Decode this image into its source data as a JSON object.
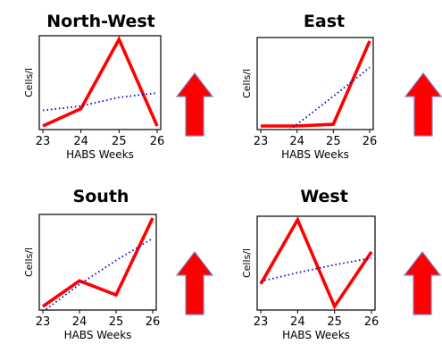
{
  "colors": {
    "line": "#ff0000",
    "trend": "#0000cc",
    "arrow": "#ff0000",
    "arrow_outline": "#7f7fbf"
  },
  "chart_data": [
    {
      "type": "line",
      "title": "North-West",
      "xlabel": "HABS Weeks",
      "ylabel": "Cells/l",
      "x": [
        23,
        24,
        25,
        26
      ],
      "xticks": [
        "23",
        "24",
        "25",
        "26"
      ],
      "ylim": [
        0,
        100
      ],
      "grid": false,
      "legend": "none",
      "series": [
        {
          "values": [
            0,
            20,
            100,
            0
          ],
          "style": "solid"
        },
        {
          "values": [
            18,
            23,
            33,
            38
          ],
          "style": "dotted"
        }
      ],
      "indicator": "up-arrow-icon"
    },
    {
      "type": "line",
      "title": "East",
      "xlabel": "HABS Weeks",
      "ylabel": "Cells/l",
      "x": [
        23,
        24,
        25,
        26
      ],
      "xticks": [
        "23",
        "24",
        "25",
        "26"
      ],
      "ylim": [
        0,
        100
      ],
      "grid": false,
      "legend": "none",
      "series": [
        {
          "values": [
            0,
            0,
            2,
            100
          ],
          "style": "solid"
        },
        {
          "values": [
            -30,
            2,
            35,
            69
          ],
          "style": "dotted"
        }
      ],
      "indicator": "up-arrow-icon"
    },
    {
      "type": "line",
      "title": "South",
      "xlabel": "HABS Weeks",
      "ylabel": "Cells/l",
      "x": [
        23,
        24,
        25,
        26
      ],
      "xticks": [
        "23",
        "24",
        "25",
        "26"
      ],
      "ylim": [
        0,
        100
      ],
      "grid": false,
      "legend": "none",
      "series": [
        {
          "values": [
            0,
            29,
            13,
            100
          ],
          "style": "solid"
        },
        {
          "values": [
            -6,
            25,
            52,
            77
          ],
          "style": "dotted"
        }
      ],
      "indicator": "up-arrow-icon"
    },
    {
      "type": "line",
      "title": "West",
      "xlabel": "HABS Weeks",
      "ylabel": "Cells/l",
      "x": [
        23,
        24,
        25,
        26
      ],
      "xticks": [
        "23",
        "24",
        "25",
        "26"
      ],
      "ylim": [
        0,
        100
      ],
      "grid": false,
      "legend": "none",
      "series": [
        {
          "values": [
            26,
            100,
            0,
            63
          ],
          "style": "solid"
        },
        {
          "values": [
            29,
            39,
            48,
            56
          ],
          "style": "dotted"
        }
      ],
      "indicator": "up-arrow-icon"
    }
  ]
}
